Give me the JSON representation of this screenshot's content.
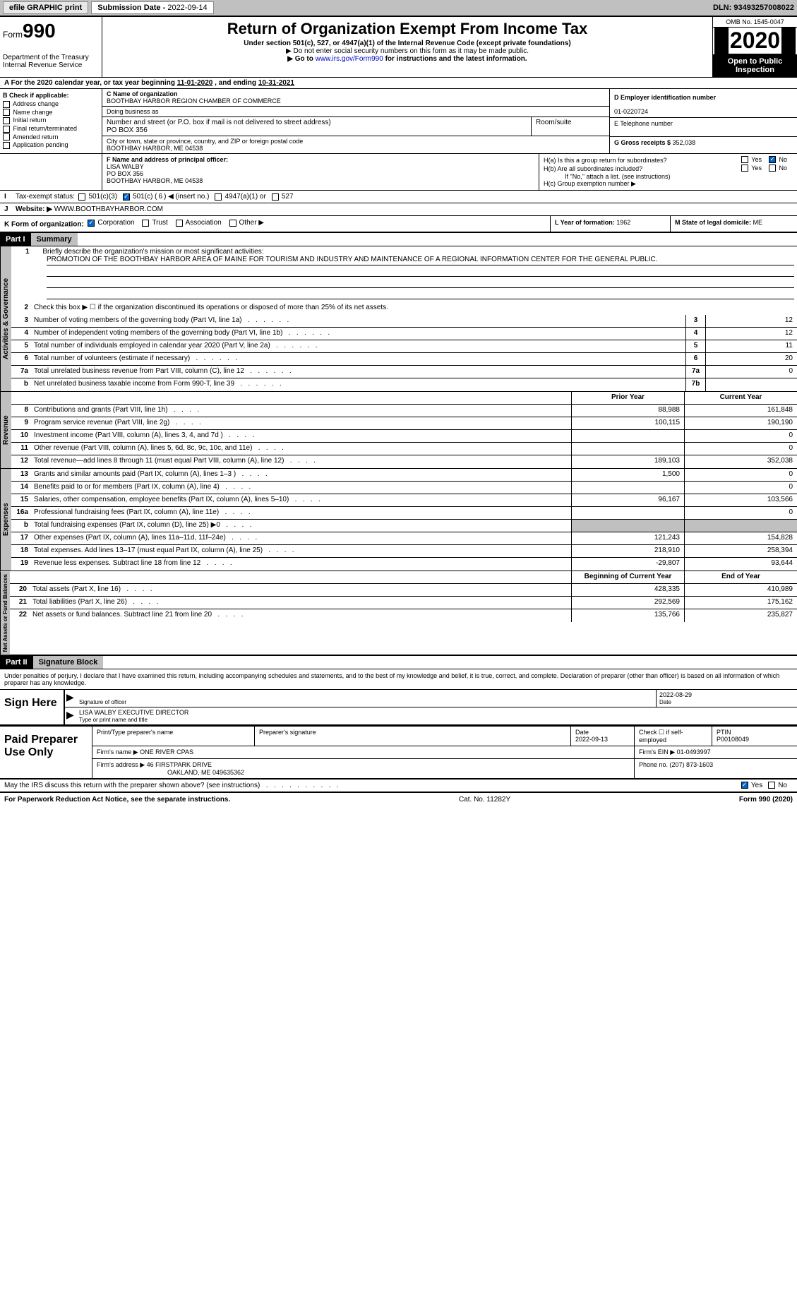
{
  "topbar": {
    "efile": "efile GRAPHIC print",
    "submission_label": "Submission Date - ",
    "submission_date": "2022-09-14",
    "dln_label": "DLN: ",
    "dln": "93493257008022"
  },
  "header": {
    "form_word": "Form",
    "form_num": "990",
    "dept": "Department of the Treasury\nInternal Revenue Service",
    "title": "Return of Organization Exempt From Income Tax",
    "subtitle": "Under section 501(c), 527, or 4947(a)(1) of the Internal Revenue Code (except private foundations)",
    "note1": "▶ Do not enter social security numbers on this form as it may be made public.",
    "note2_pre": "▶ Go to ",
    "note2_link": "www.irs.gov/Form990",
    "note2_post": " for instructions and the latest information.",
    "omb": "OMB No. 1545-0047",
    "year": "2020",
    "open": "Open to Public Inspection"
  },
  "rowA": {
    "text_pre": "A For the 2020 calendar year, or tax year beginning ",
    "begin": "11-01-2020",
    "mid": "  , and ending ",
    "end": "10-31-2021"
  },
  "colB": {
    "label": "B Check if applicable:",
    "items": [
      "Address change",
      "Name change",
      "Initial return",
      "Final return/terminated",
      "Amended return",
      "Application pending"
    ]
  },
  "colC": {
    "name_org_lbl": "C Name of organization",
    "name_org": "BOOTHBAY HARBOR REGION CHAMBER OF COMMERCE",
    "dba_lbl": "Doing business as",
    "dba": "",
    "street_lbl": "Number and street (or P.O. box if mail is not delivered to street address)",
    "street": "PO BOX 356",
    "room_lbl": "Room/suite",
    "room": "",
    "city_lbl": "City or town, state or province, country, and ZIP or foreign postal code",
    "city": "BOOTHBAY HARBOR, ME  04538"
  },
  "colD": {
    "ein_lbl": "D Employer identification number",
    "ein": "01-0220724",
    "phone_lbl": "E Telephone number",
    "phone": "",
    "gross_lbl": "G Gross receipts $ ",
    "gross": "352,038"
  },
  "rowF": {
    "label": "F Name and address of principal officer:",
    "name": "LISA WALBY",
    "addr1": "PO BOX 356",
    "addr2": "BOOTHBAY HARBOR, ME  04538"
  },
  "rowH": {
    "ha": "H(a)  Is this a group return for subordinates?",
    "ha_yes": "Yes",
    "ha_no": "No",
    "hb": "H(b)  Are all subordinates included?",
    "hb_yes": "Yes",
    "hb_no": "No",
    "hb_note": "If \"No,\" attach a list. (see instructions)",
    "hc": "H(c)  Group exemption number ▶"
  },
  "rowI": {
    "label": "Tax-exempt status:",
    "opt1": "501(c)(3)",
    "opt2_pre": "501(c) ( ",
    "opt2_num": "6",
    "opt2_post": " ) ◀ (insert no.)",
    "opt3": "4947(a)(1) or",
    "opt4": "527"
  },
  "rowJ": {
    "label": "Website: ▶",
    "value": "WWW.BOOTHBAYHARBOR.COM"
  },
  "rowK": {
    "label": "K Form of organization:",
    "opts": [
      "Corporation",
      "Trust",
      "Association",
      "Other ▶"
    ],
    "checked": 0,
    "L_lbl": "L Year of formation: ",
    "L_val": "1962",
    "M_lbl": "M State of legal domicile: ",
    "M_val": "ME"
  },
  "part1": {
    "hdr": "Part I",
    "title": "Summary"
  },
  "mission": {
    "num": "1",
    "label": "Briefly describe the organization's mission or most significant activities:",
    "text": "PROMOTION OF THE BOOTHBAY HARBOR AREA OF MAINE FOR TOURISM AND INDUSTRY AND MAINTENANCE OF A REGIONAL INFORMATION CENTER FOR THE GENERAL PUBLIC."
  },
  "gov_lines": [
    {
      "num": "2",
      "desc": "Check this box ▶ ☐  if the organization discontinued its operations or disposed of more than 25% of its net assets.",
      "box": "",
      "val": ""
    },
    {
      "num": "3",
      "desc": "Number of voting members of the governing body (Part VI, line 1a)",
      "box": "3",
      "val": "12"
    },
    {
      "num": "4",
      "desc": "Number of independent voting members of the governing body (Part VI, line 1b)",
      "box": "4",
      "val": "12"
    },
    {
      "num": "5",
      "desc": "Total number of individuals employed in calendar year 2020 (Part V, line 2a)",
      "box": "5",
      "val": "11"
    },
    {
      "num": "6",
      "desc": "Total number of volunteers (estimate if necessary)",
      "box": "6",
      "val": "20"
    },
    {
      "num": "7a",
      "desc": "Total unrelated business revenue from Part VIII, column (C), line 12",
      "box": "7a",
      "val": "0"
    },
    {
      "num": "b",
      "desc": "Net unrelated business taxable income from Form 990-T, line 39",
      "box": "7b",
      "val": ""
    }
  ],
  "rev_hdr": {
    "py": "Prior Year",
    "cy": "Current Year"
  },
  "rev_lines": [
    {
      "num": "8",
      "desc": "Contributions and grants (Part VIII, line 1h)",
      "py": "88,988",
      "cy": "161,848"
    },
    {
      "num": "9",
      "desc": "Program service revenue (Part VIII, line 2g)",
      "py": "100,115",
      "cy": "190,190"
    },
    {
      "num": "10",
      "desc": "Investment income (Part VIII, column (A), lines 3, 4, and 7d )",
      "py": "",
      "cy": "0"
    },
    {
      "num": "11",
      "desc": "Other revenue (Part VIII, column (A), lines 5, 6d, 8c, 9c, 10c, and 11e)",
      "py": "",
      "cy": "0"
    },
    {
      "num": "12",
      "desc": "Total revenue—add lines 8 through 11 (must equal Part VIII, column (A), line 12)",
      "py": "189,103",
      "cy": "352,038"
    }
  ],
  "exp_lines": [
    {
      "num": "13",
      "desc": "Grants and similar amounts paid (Part IX, column (A), lines 1–3 )",
      "py": "1,500",
      "cy": "0"
    },
    {
      "num": "14",
      "desc": "Benefits paid to or for members (Part IX, column (A), line 4)",
      "py": "",
      "cy": "0"
    },
    {
      "num": "15",
      "desc": "Salaries, other compensation, employee benefits (Part IX, column (A), lines 5–10)",
      "py": "96,167",
      "cy": "103,566"
    },
    {
      "num": "16a",
      "desc": "Professional fundraising fees (Part IX, column (A), line 11e)",
      "py": "",
      "cy": "0"
    },
    {
      "num": "b",
      "desc": "Total fundraising expenses (Part IX, column (D), line 25) ▶0",
      "py": "SHADE",
      "cy": "SHADE"
    },
    {
      "num": "17",
      "desc": "Other expenses (Part IX, column (A), lines 11a–11d, 11f–24e)",
      "py": "121,243",
      "cy": "154,828"
    },
    {
      "num": "18",
      "desc": "Total expenses. Add lines 13–17 (must equal Part IX, column (A), line 25)",
      "py": "218,910",
      "cy": "258,394"
    },
    {
      "num": "19",
      "desc": "Revenue less expenses. Subtract line 18 from line 12",
      "py": "-29,807",
      "cy": "93,644"
    }
  ],
  "na_hdr": {
    "py": "Beginning of Current Year",
    "cy": "End of Year"
  },
  "na_lines": [
    {
      "num": "20",
      "desc": "Total assets (Part X, line 16)",
      "py": "428,335",
      "cy": "410,989"
    },
    {
      "num": "21",
      "desc": "Total liabilities (Part X, line 26)",
      "py": "292,569",
      "cy": "175,162"
    },
    {
      "num": "22",
      "desc": "Net assets or fund balances. Subtract line 21 from line 20",
      "py": "135,766",
      "cy": "235,827"
    }
  ],
  "side_labels": {
    "gov": "Activities & Governance",
    "rev": "Revenue",
    "exp": "Expenses",
    "na": "Net Assets or Fund Balances"
  },
  "part2": {
    "hdr": "Part II",
    "title": "Signature Block"
  },
  "sig": {
    "perjury": "Under penalties of perjury, I declare that I have examined this return, including accompanying schedules and statements, and to the best of my knowledge and belief, it is true, correct, and complete. Declaration of preparer (other than officer) is based on all information of which preparer has any knowledge.",
    "sign_here": "Sign Here",
    "sig_officer_lbl": "Signature of officer",
    "sig_date": "2022-08-29",
    "date_lbl": "Date",
    "name_title": "LISA WALBY  EXECUTIVE DIRECTOR",
    "name_title_lbl": "Type or print name and title"
  },
  "prep": {
    "label": "Paid Preparer Use Only",
    "print_name_lbl": "Print/Type preparer's name",
    "print_name": "",
    "sig_lbl": "Preparer's signature",
    "date_lbl": "Date",
    "date": "2022-09-13",
    "self_lbl": "Check ☐ if self-employed",
    "ptin_lbl": "PTIN",
    "ptin": "P00108049",
    "firm_name_lbl": "Firm's name    ▶ ",
    "firm_name": "ONE RIVER CPAS",
    "firm_ein_lbl": "Firm's EIN ▶ ",
    "firm_ein": "01-0493997",
    "firm_addr_lbl": "Firm's address ▶ ",
    "firm_addr": "46 FIRSTPARK DRIVE",
    "firm_addr2": "OAKLAND, ME  049635362",
    "phone_lbl": "Phone no. ",
    "phone": "(207) 873-1603"
  },
  "discuss": {
    "text": "May the IRS discuss this return with the preparer shown above? (see instructions)",
    "yes": "Yes",
    "no": "No"
  },
  "footer": {
    "left": "For Paperwork Reduction Act Notice, see the separate instructions.",
    "mid": "Cat. No. 11282Y",
    "right": "Form 990 (2020)"
  },
  "colors": {
    "shade": "#c0c0c0",
    "link": "#0000cc",
    "check": "#0066cc"
  }
}
